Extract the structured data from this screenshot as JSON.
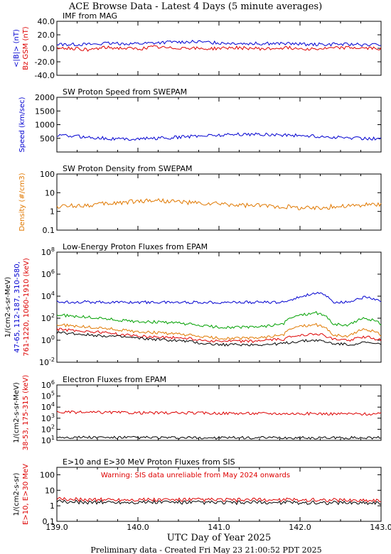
{
  "header": {
    "title": "ACE Browse Data - Latest 4 Days (5 minute averages)",
    "xlabel": "UTC Day of Year 2025",
    "footer": "Preliminary data - Created Fri May 23 21:00:52 PDT 2025"
  },
  "x_ticks": [
    "139.0",
    "140.0",
    "141.0",
    "142.0",
    "143.0"
  ],
  "colors": {
    "blue": "#0000d0",
    "red": "#dd0000",
    "green": "#00a000",
    "orange": "#e07800",
    "black": "#000000"
  },
  "chart_data": [
    {
      "type": "line",
      "title": "IMF from MAG",
      "ylabel_lines": [
        {
          "text": "<|B|> (nT)",
          "color": "blue"
        },
        {
          "text": "Bz GSM (nT)",
          "color": "red"
        }
      ],
      "y_ticks": [
        "40.0",
        "20.0",
        "0.0",
        "-20.0",
        "-40.0"
      ],
      "ylim": [
        -40,
        40
      ],
      "x": [
        139.0,
        139.2,
        139.4,
        139.6,
        139.8,
        140.0,
        140.2,
        140.4,
        140.6,
        140.8,
        141.0,
        141.2,
        141.4,
        141.6,
        141.8,
        142.0,
        142.2,
        142.4,
        142.6,
        142.8,
        143.0
      ],
      "series": [
        {
          "name": "<|B|>",
          "color": "blue",
          "values": [
            6,
            6,
            6,
            7,
            7,
            7,
            8,
            9,
            10,
            9,
            8,
            8,
            7,
            7,
            7,
            6,
            6,
            6,
            6,
            5,
            5
          ]
        },
        {
          "name": "Bz GSM",
          "color": "red",
          "values": [
            1,
            0,
            -2,
            1,
            0,
            -1,
            2,
            0,
            1,
            -1,
            0,
            1,
            0,
            -1,
            1,
            0,
            -1,
            0,
            1,
            0,
            0
          ]
        }
      ]
    },
    {
      "type": "line",
      "title": "SW Proton Speed from SWEPAM",
      "ylabel_lines": [
        {
          "text": "Speed (km/sec)",
          "color": "blue"
        }
      ],
      "y_ticks": [
        "2000",
        "1500",
        "1000",
        "500"
      ],
      "ylim": [
        0,
        2000
      ],
      "x": [
        139.0,
        139.2,
        139.4,
        139.6,
        139.8,
        140.0,
        140.2,
        140.4,
        140.6,
        140.8,
        141.0,
        141.2,
        141.4,
        141.6,
        141.8,
        142.0,
        142.2,
        142.4,
        142.6,
        142.8,
        143.0
      ],
      "series": [
        {
          "name": "Speed",
          "color": "blue",
          "values": [
            600,
            580,
            540,
            500,
            470,
            480,
            500,
            520,
            560,
            600,
            620,
            640,
            650,
            640,
            620,
            600,
            570,
            540,
            520,
            500,
            490
          ]
        }
      ]
    },
    {
      "type": "line",
      "title": "SW Proton Density from SWEPAM",
      "ylabel_lines": [
        {
          "text": "Density (#/cm3)",
          "color": "orange"
        }
      ],
      "y_ticks": [
        "100",
        "10",
        "1",
        "0.1"
      ],
      "ylim": [
        0.1,
        100
      ],
      "log": true,
      "x": [
        139.0,
        139.2,
        139.4,
        139.6,
        139.8,
        140.0,
        140.2,
        140.4,
        140.6,
        140.8,
        141.0,
        141.2,
        141.4,
        141.6,
        141.8,
        142.0,
        142.2,
        142.4,
        142.6,
        142.8,
        143.0
      ],
      "series": [
        {
          "name": "Density",
          "color": "orange",
          "values": [
            1.8,
            2,
            2.2,
            2.5,
            3,
            3.5,
            4,
            3.5,
            3,
            2.5,
            2.5,
            2.2,
            2,
            2,
            1.8,
            1.6,
            1.5,
            1.8,
            2,
            2.2,
            2.5
          ]
        }
      ]
    },
    {
      "type": "line",
      "title": "Low-Energy Proton Fluxes from EPAM",
      "ylabel_lines": [
        {
          "text": "1/(cm2-s-sr-MeV)",
          "color": "black"
        },
        {
          "text": "47-65, 112-187, 310-580,",
          "color": "blue"
        },
        {
          "text": "761-1220, 1060-1910 (keV)",
          "color": "red"
        }
      ],
      "y_ticks": [
        "10^8",
        "10^6",
        "10^4",
        "10^2",
        "10^0",
        "10^-2"
      ],
      "ylim": [
        0.01,
        100000000
      ],
      "log": true,
      "x": [
        139.0,
        139.2,
        139.4,
        139.6,
        139.8,
        140.0,
        140.2,
        140.4,
        140.6,
        140.8,
        141.0,
        141.2,
        141.4,
        141.6,
        141.8,
        142.0,
        142.2,
        142.4,
        142.6,
        142.8,
        143.0
      ],
      "series": [
        {
          "name": "47-65",
          "color": "blue",
          "values": [
            3000,
            3000,
            3000,
            2800,
            2800,
            2800,
            2800,
            2800,
            2800,
            2800,
            2800,
            2800,
            2800,
            2800,
            2800,
            8000,
            20000,
            3000,
            2800,
            8000,
            3000
          ]
        },
        {
          "name": "112-187",
          "color": "green",
          "values": [
            200,
            150,
            120,
            90,
            60,
            50,
            45,
            40,
            30,
            20,
            15,
            15,
            15,
            20,
            30,
            200,
            300,
            30,
            20,
            100,
            30
          ]
        },
        {
          "name": "310-580",
          "color": "orange",
          "values": [
            25,
            20,
            15,
            12,
            8,
            6,
            5,
            4,
            3,
            2,
            1.5,
            1.5,
            1.5,
            2,
            3,
            20,
            25,
            3,
            2,
            10,
            3
          ]
        },
        {
          "name": "761-1220",
          "color": "red",
          "values": [
            10,
            8,
            6,
            5,
            3,
            2.5,
            2,
            1.8,
            1.5,
            1,
            0.8,
            0.8,
            0.8,
            1,
            1.2,
            3,
            4,
            1.2,
            1,
            2,
            1
          ]
        },
        {
          "name": "1060-1910",
          "color": "black",
          "values": [
            5,
            4,
            3,
            2.5,
            2,
            1.5,
            1.2,
            1,
            0.8,
            0.5,
            0.4,
            0.4,
            0.4,
            0.4,
            0.5,
            0.8,
            1,
            0.5,
            0.4,
            0.6,
            0.4
          ]
        }
      ]
    },
    {
      "type": "line",
      "title": "Electron Fluxes from EPAM",
      "ylabel_lines": [
        {
          "text": "1/(cm2-s-sr-MeV)",
          "color": "black"
        },
        {
          "text": "38-53, 175-315 (keV)",
          "color": "red"
        }
      ],
      "y_ticks": [
        "10^6",
        "10^5",
        "10^4",
        "10^3",
        "10^2",
        "10^1"
      ],
      "ylim": [
        10,
        1000000
      ],
      "log": true,
      "x": [
        139.0,
        139.2,
        139.4,
        139.6,
        139.8,
        140.0,
        140.2,
        140.4,
        140.6,
        140.8,
        141.0,
        141.2,
        141.4,
        141.6,
        141.8,
        142.0,
        142.2,
        142.4,
        142.6,
        142.8,
        143.0
      ],
      "series": [
        {
          "name": "38-53",
          "color": "red",
          "values": [
            3500,
            3400,
            3300,
            3300,
            3200,
            3100,
            3000,
            3000,
            3000,
            2900,
            2800,
            2800,
            2700,
            2700,
            2600,
            2600,
            2600,
            2500,
            2500,
            2400,
            2400
          ]
        },
        {
          "name": "175-315",
          "color": "black",
          "values": [
            20,
            19,
            19,
            18,
            18,
            18,
            18,
            17,
            17,
            17,
            17,
            17,
            17,
            17,
            17,
            17,
            17,
            17,
            17,
            17,
            17
          ]
        }
      ]
    },
    {
      "type": "line",
      "title": "E>10 and E>30 MeV Proton Fluxes from SIS",
      "annotation": "Warning: SIS data unreliable from May 2024 onwards",
      "ylabel_lines": [
        {
          "text": "1/(cm2-s-sr)",
          "color": "black"
        },
        {
          "text": "E>10, E>30 MeV",
          "color": "red"
        }
      ],
      "y_ticks": [
        "100",
        "10",
        "1",
        "0.1"
      ],
      "ylim": [
        0.1,
        300
      ],
      "log": true,
      "x": [
        139.0,
        139.2,
        139.4,
        139.6,
        139.8,
        140.0,
        140.2,
        140.4,
        140.6,
        140.8,
        141.0,
        141.2,
        141.4,
        141.6,
        141.8,
        142.0,
        142.2,
        142.4,
        142.6,
        142.8,
        143.0
      ],
      "series": [
        {
          "name": "E>10",
          "color": "red",
          "values": [
            2.6,
            2.6,
            2.5,
            2.5,
            2.5,
            2.5,
            2.4,
            2.4,
            2.4,
            2.4,
            2.4,
            2.4,
            2.4,
            2.4,
            2.4,
            2.4,
            2.4,
            2.4,
            2.3,
            2.3,
            2.3
          ]
        },
        {
          "name": "E>30",
          "color": "black",
          "values": [
            1.8,
            1.8,
            1.7,
            1.7,
            1.7,
            1.7,
            1.7,
            1.7,
            1.6,
            1.6,
            1.6,
            1.6,
            1.6,
            1.6,
            1.6,
            1.6,
            1.6,
            1.6,
            1.6,
            1.6,
            1.6
          ]
        }
      ]
    }
  ]
}
